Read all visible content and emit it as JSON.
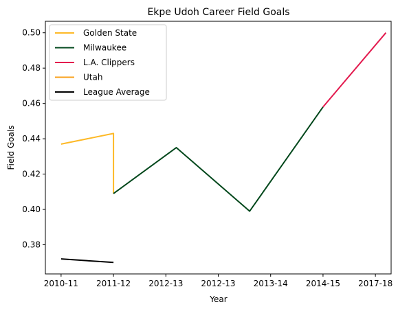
{
  "chart_data": {
    "type": "line",
    "title": "Ekpe Udoh Career Field Goals",
    "xlabel": "Year",
    "ylabel": "Field Goals",
    "x_ticks": [
      "2010-11",
      "2011-12",
      "2012-13",
      "2012-13",
      "2013-14",
      "2014-15",
      "2017-18"
    ],
    "y_ticks": [
      "0.38",
      "0.40",
      "0.42",
      "0.44",
      "0.46",
      "0.48",
      "0.50"
    ],
    "xlim": [
      -0.3,
      6.3
    ],
    "ylim": [
      0.3635,
      0.5065
    ],
    "grid": false,
    "legend_position": "top-left",
    "series": [
      {
        "name": "Golden State",
        "color": "#FDB927",
        "x": [
          0,
          1,
          1
        ],
        "y": [
          0.437,
          0.443,
          0.409
        ]
      },
      {
        "name": "Milwaukee",
        "color": "#00471B",
        "x": [
          1,
          2.2,
          3.6,
          5
        ],
        "y": [
          0.409,
          0.435,
          0.399,
          0.458
        ]
      },
      {
        "name": "L.A. Clippers",
        "color": "#E31B4F",
        "x": [
          5,
          6.2
        ],
        "y": [
          0.458,
          0.5
        ]
      },
      {
        "name": "Utah",
        "color": "#F9A01B",
        "x": [],
        "y": []
      },
      {
        "name": "League Average",
        "color": "#000000",
        "x": [
          0,
          1
        ],
        "y": [
          0.372,
          0.37
        ]
      }
    ]
  }
}
